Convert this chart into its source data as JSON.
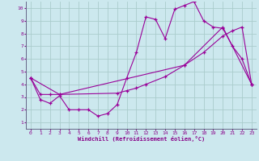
{
  "xlabel": "Windchill (Refroidissement éolien,°C)",
  "bg_color": "#cce8ee",
  "grid_color": "#aacccc",
  "line_color": "#990099",
  "spine_color": "#666688",
  "tick_color": "#880088",
  "xlim": [
    -0.5,
    23.5
  ],
  "ylim": [
    0.5,
    10.5
  ],
  "xticks": [
    0,
    1,
    2,
    3,
    4,
    5,
    6,
    7,
    8,
    9,
    10,
    11,
    12,
    13,
    14,
    15,
    16,
    17,
    18,
    19,
    20,
    21,
    22,
    23
  ],
  "yticks": [
    1,
    2,
    3,
    4,
    5,
    6,
    7,
    8,
    9,
    10
  ],
  "series1_x": [
    0,
    1,
    2,
    3,
    4,
    5,
    6,
    7,
    8,
    9,
    10,
    11,
    12,
    13,
    14,
    15,
    16,
    17,
    18,
    19,
    20,
    21,
    22,
    23
  ],
  "series1_y": [
    4.5,
    2.8,
    2.5,
    3.1,
    2.0,
    2.0,
    2.0,
    1.5,
    1.7,
    2.4,
    4.5,
    6.5,
    9.3,
    9.1,
    7.6,
    9.9,
    10.2,
    10.5,
    9.0,
    8.5,
    8.4,
    7.0,
    6.0,
    4.0
  ],
  "series2_x": [
    0,
    1,
    2,
    3,
    9,
    10,
    11,
    12,
    14,
    16,
    18,
    20,
    21,
    22,
    23
  ],
  "series2_y": [
    4.5,
    3.2,
    3.2,
    3.2,
    3.3,
    3.5,
    3.7,
    4.0,
    4.6,
    5.5,
    6.5,
    7.8,
    8.2,
    8.5,
    4.0
  ],
  "series3_x": [
    0,
    3,
    16,
    20,
    23
  ],
  "series3_y": [
    4.5,
    3.2,
    5.5,
    8.5,
    4.0
  ]
}
